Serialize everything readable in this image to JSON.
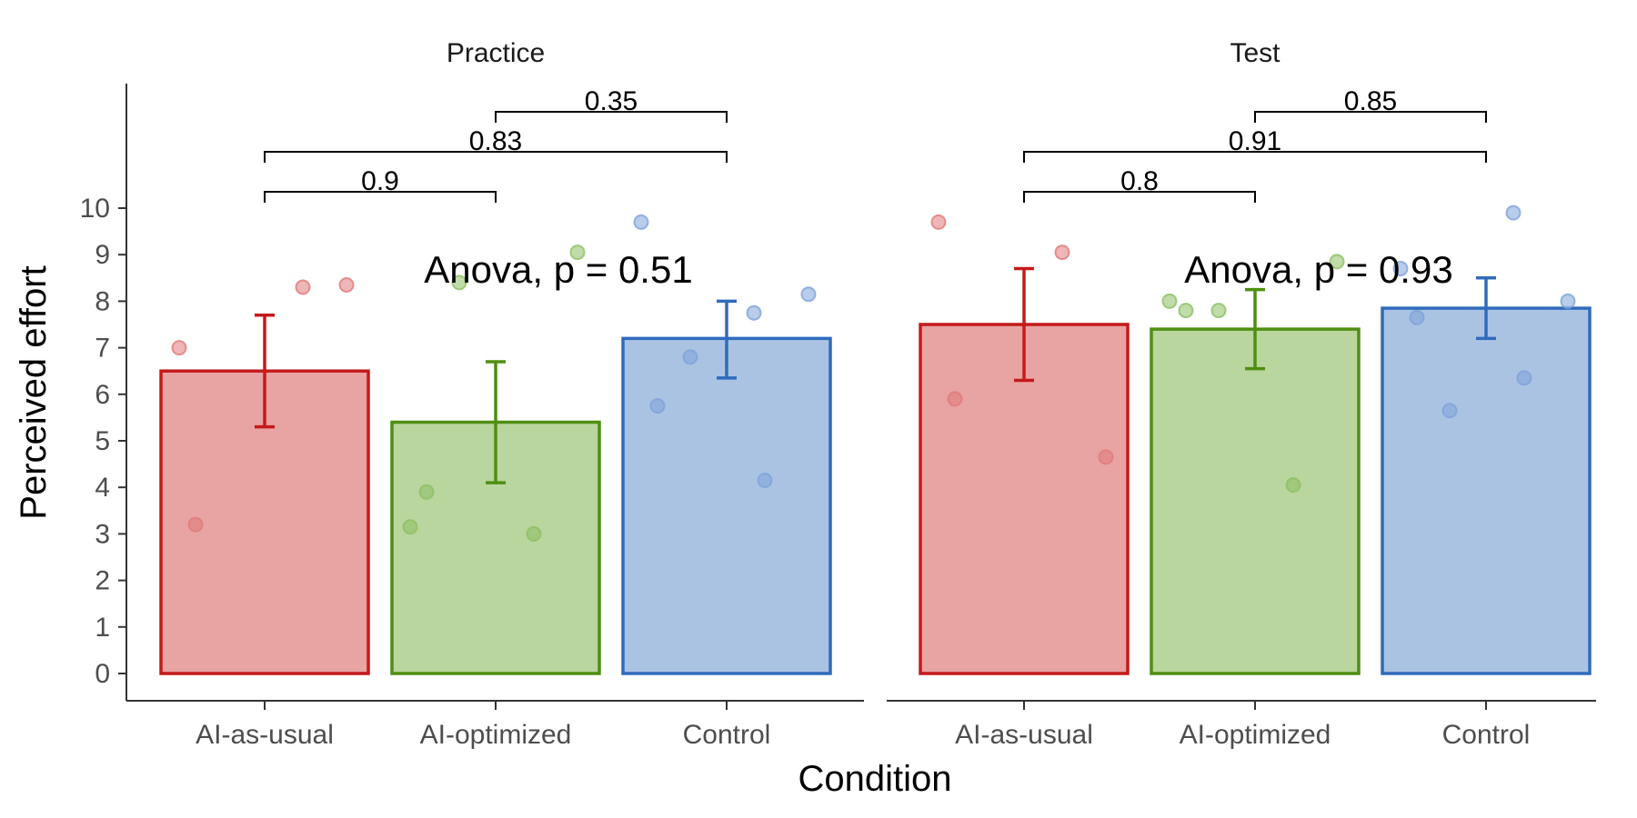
{
  "chart_data": {
    "type": "bar",
    "xlabel": "Condition",
    "ylabel": "Perceived effort",
    "ylim": [
      0,
      10
    ],
    "yticks": [
      0,
      1,
      2,
      3,
      4,
      5,
      6,
      7,
      8,
      9,
      10
    ],
    "grid": false,
    "categories": [
      "AI-as-usual",
      "AI-optimized",
      "Control"
    ],
    "colors": {
      "AI-as-usual": {
        "stroke": "#c41a1a",
        "fill": "#e8a3a3",
        "point": "#e07a7a"
      },
      "AI-optimized": {
        "stroke": "#4f8f10",
        "fill": "#b9d69e",
        "point": "#8dbf63"
      },
      "Control": {
        "stroke": "#2f6bbd",
        "fill": "#abc3e3",
        "point": "#7ea3db"
      }
    },
    "panels": [
      {
        "label": "Practice",
        "anova_text": "Anova, p = 0.51",
        "bars": [
          {
            "category": "AI-as-usual",
            "mean": 6.5,
            "err_low": 5.3,
            "err_high": 7.7,
            "points": [
              7.0,
              3.2,
              8.3,
              8.35
            ]
          },
          {
            "category": "AI-optimized",
            "mean": 5.4,
            "err_low": 4.1,
            "err_high": 6.7,
            "points": [
              3.15,
              3.9,
              3.0,
              9.05,
              8.4
            ]
          },
          {
            "category": "Control",
            "mean": 7.2,
            "err_low": 6.35,
            "err_high": 8.0,
            "points": [
              9.7,
              5.75,
              4.15,
              8.15,
              6.8,
              7.75
            ]
          }
        ],
        "comparisons": [
          {
            "from": "AI-optimized",
            "to": "Control",
            "label": "0.35"
          },
          {
            "from": "AI-as-usual",
            "to": "Control",
            "label": "0.83"
          },
          {
            "from": "AI-as-usual",
            "to": "AI-optimized",
            "label": "0.9"
          }
        ]
      },
      {
        "label": "Test",
        "anova_text": "Anova, p = 0.93",
        "bars": [
          {
            "category": "AI-as-usual",
            "mean": 7.5,
            "err_low": 6.3,
            "err_high": 8.7,
            "points": [
              9.7,
              5.9,
              9.05,
              4.65
            ]
          },
          {
            "category": "AI-optimized",
            "mean": 7.4,
            "err_low": 6.55,
            "err_high": 8.25,
            "points": [
              8.0,
              7.8,
              4.05,
              8.85,
              7.8
            ]
          },
          {
            "category": "Control",
            "mean": 7.85,
            "err_low": 7.2,
            "err_high": 8.5,
            "points": [
              8.7,
              7.65,
              6.35,
              8.0,
              5.65,
              9.9
            ]
          }
        ],
        "comparisons": [
          {
            "from": "AI-optimized",
            "to": "Control",
            "label": "0.85"
          },
          {
            "from": "AI-as-usual",
            "to": "Control",
            "label": "0.91"
          },
          {
            "from": "AI-as-usual",
            "to": "AI-optimized",
            "label": "0.8"
          }
        ]
      }
    ]
  }
}
